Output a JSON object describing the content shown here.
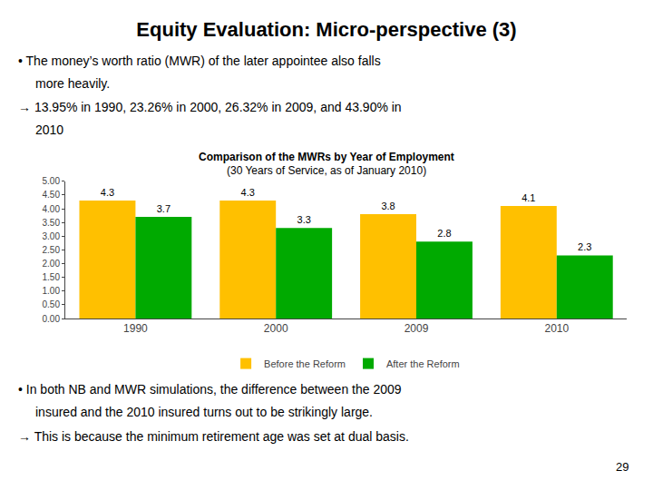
{
  "chart_data": {
    "type": "bar",
    "title": "Equity Evaluation: Micro-perspective (3)",
    "subtitle": "Comparison of the MWRs by Year of Employment",
    "annotations": [
      "• The money’s worth ratio (MWR) of the later appointee also falls",
      "more heavily.",
      "→ 13.95% in 1990, 23.26% in 2000, 26.32% in 2009, and 43.90% in",
      "2010",
      "(30 Years of Service, as of January 2010)",
      "• In both NB and MWR simulations, the difference between the 2009",
      "insured and the 2010 insured turns out to be strikingly large.",
      "→ This is because the minimum retirement age was set at dual basis.",
      "29"
    ],
    "categories": [
      "1990",
      "2000",
      "2009",
      "2010"
    ],
    "series": [
      {
        "name": "Before the Reform",
        "color": "#FFC000",
        "values": [
          4.3,
          4.3,
          3.8,
          4.1
        ]
      },
      {
        "name": "After the Reform",
        "color": "#00AA00",
        "values": [
          3.7,
          3.3,
          2.8,
          2.3
        ]
      }
    ],
    "ylim": [
      0,
      5.0
    ],
    "yticks": [
      {
        "value": 0.0,
        "label": "0.00"
      },
      {
        "value": 0.5,
        "label": "0.50"
      },
      {
        "value": 1.0,
        "label": "1.00"
      },
      {
        "value": 1.5,
        "label": "1.50"
      },
      {
        "value": 2.0,
        "label": "2.00"
      },
      {
        "value": 2.5,
        "label": "2.50"
      },
      {
        "value": 3.0,
        "label": "3.00"
      },
      {
        "value": 3.5,
        "label": "3.50"
      },
      {
        "value": 4.0,
        "label": "4.00"
      },
      {
        "value": 4.5,
        "label": "4.50"
      },
      {
        "value": 5.0,
        "label": "5.00"
      }
    ],
    "data_labels": true,
    "legend": "bottom",
    "grid": false
  }
}
